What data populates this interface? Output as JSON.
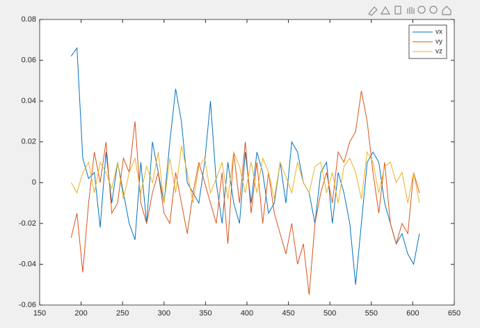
{
  "chart_data": {
    "type": "line",
    "x": [
      188,
      195,
      202,
      209,
      216,
      223,
      230,
      237,
      244,
      251,
      258,
      265,
      272,
      279,
      286,
      293,
      300,
      307,
      314,
      321,
      328,
      335,
      342,
      349,
      356,
      363,
      370,
      377,
      384,
      391,
      398,
      405,
      412,
      419,
      426,
      433,
      440,
      447,
      454,
      461,
      468,
      475,
      482,
      489,
      496,
      503,
      510,
      517,
      524,
      531,
      538,
      545,
      552,
      559,
      566,
      573,
      580,
      587,
      594,
      601,
      608
    ],
    "series": [
      {
        "name": "vx",
        "color": "#0072bd",
        "values": [
          0.062,
          0.066,
          0.012,
          0.002,
          0.005,
          -0.022,
          0.015,
          -0.01,
          0.01,
          -0.005,
          -0.02,
          -0.028,
          0.01,
          -0.02,
          0.02,
          0.005,
          -0.01,
          0.02,
          0.046,
          0.03,
          0.0,
          -0.005,
          -0.01,
          0.01,
          0.04,
          0.0,
          -0.02,
          0.01,
          -0.01,
          -0.02,
          0.015,
          -0.01,
          0.015,
          0.005,
          -0.015,
          -0.01,
          0.01,
          -0.01,
          0.02,
          0.015,
          0.0,
          -0.005,
          -0.02,
          0.005,
          0.01,
          -0.02,
          0.005,
          -0.005,
          -0.02,
          -0.05,
          -0.02,
          0.01,
          0.015,
          0.01,
          -0.01,
          -0.02,
          -0.03,
          -0.025,
          -0.035,
          -0.04,
          -0.025
        ]
      },
      {
        "name": "vy",
        "color": "#d95319",
        "values": [
          -0.027,
          -0.015,
          -0.044,
          -0.01,
          0.015,
          0.0,
          0.02,
          -0.015,
          -0.01,
          0.012,
          0.005,
          0.03,
          -0.01,
          -0.02,
          -0.005,
          0.005,
          -0.015,
          -0.02,
          0.005,
          -0.01,
          -0.025,
          -0.005,
          0.01,
          0.0,
          -0.01,
          -0.02,
          0.005,
          -0.03,
          0.015,
          -0.01,
          0.02,
          -0.015,
          0.01,
          -0.02,
          0.005,
          -0.015,
          -0.025,
          -0.035,
          -0.02,
          -0.04,
          -0.03,
          -0.055,
          -0.02,
          -0.005,
          0.005,
          -0.01,
          0.015,
          0.01,
          0.02,
          0.025,
          0.045,
          0.03,
          0.005,
          -0.015,
          0.01,
          -0.02,
          -0.03,
          -0.02,
          -0.025,
          0.005,
          -0.005
        ]
      },
      {
        "name": "vz",
        "color": "#edb120",
        "values": [
          0.0,
          -0.005,
          0.005,
          0.01,
          -0.005,
          0.01,
          0.005,
          -0.003,
          0.01,
          -0.008,
          0.005,
          0.012,
          -0.005,
          0.008,
          0.0,
          0.015,
          -0.01,
          0.012,
          -0.005,
          0.018,
          0.005,
          -0.01,
          0.008,
          0.012,
          -0.005,
          0.002,
          0.01,
          -0.008,
          0.015,
          0.008,
          -0.005,
          0.01,
          -0.005,
          0.012,
          0.005,
          -0.008,
          0.01,
          0.003,
          -0.005,
          0.01,
          0.0,
          -0.005,
          0.008,
          0.01,
          -0.005,
          0.005,
          -0.01,
          0.008,
          0.012,
          0.005,
          -0.008,
          0.015,
          0.01,
          -0.005,
          0.008,
          0.01,
          0.0,
          0.005,
          -0.01,
          0.005,
          -0.01
        ]
      }
    ],
    "xlim": [
      150,
      650
    ],
    "xticks": [
      150,
      200,
      250,
      300,
      350,
      400,
      450,
      500,
      550,
      600,
      650
    ],
    "ylim": [
      -0.06,
      0.08
    ],
    "yticks": [
      -0.06,
      -0.04,
      -0.02,
      0,
      0.02,
      0.04,
      0.06,
      0.08
    ],
    "legend": "northeast",
    "grid": false
  }
}
